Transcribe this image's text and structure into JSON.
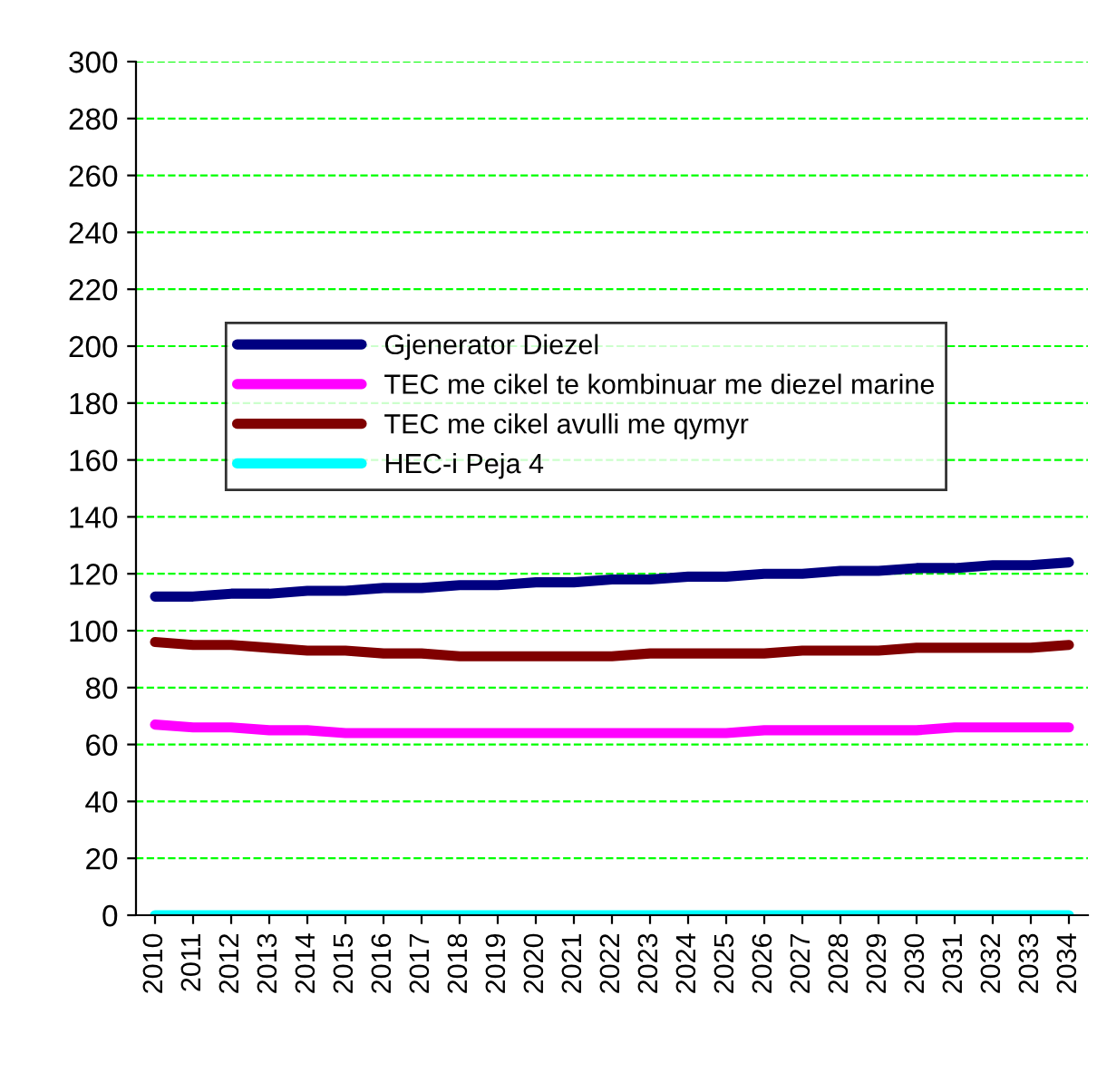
{
  "chart_data": {
    "type": "line",
    "categories": [
      "2010",
      "2011",
      "2012",
      "2013",
      "2014",
      "2015",
      "2016",
      "2017",
      "2018",
      "2019",
      "2020",
      "2021",
      "2022",
      "2023",
      "2024",
      "2025",
      "2026",
      "2027",
      "2028",
      "2029",
      "2030",
      "2031",
      "2032",
      "2033",
      "2034"
    ],
    "series": [
      {
        "name": "Gjenerator Diezel",
        "color": "#000080",
        "values": [
          112,
          112,
          113,
          113,
          114,
          114,
          115,
          115,
          116,
          116,
          117,
          117,
          118,
          118,
          119,
          119,
          120,
          120,
          121,
          121,
          122,
          122,
          123,
          123,
          124
        ]
      },
      {
        "name": "TEC me cikel te kombinuar me diezel marine",
        "color": "#ff00ff",
        "values": [
          67,
          66,
          66,
          65,
          65,
          64,
          64,
          64,
          64,
          64,
          64,
          64,
          64,
          64,
          64,
          64,
          65,
          65,
          65,
          65,
          65,
          66,
          66,
          66,
          66
        ]
      },
      {
        "name": "TEC me cikel avulli me qymyr",
        "color": "#800000",
        "values": [
          96,
          95,
          95,
          94,
          93,
          93,
          92,
          92,
          91,
          91,
          91,
          91,
          91,
          92,
          92,
          92,
          92,
          93,
          93,
          93,
          94,
          94,
          94,
          94,
          95
        ]
      },
      {
        "name": "HEC-i Peja 4",
        "color": "#00ffff",
        "values": [
          0,
          0,
          0,
          0,
          0,
          0,
          0,
          0,
          0,
          0,
          0,
          0,
          0,
          0,
          0,
          0,
          0,
          0,
          0,
          0,
          0,
          0,
          0,
          0,
          0
        ]
      }
    ],
    "ylim": [
      0,
      300
    ],
    "yticks": [
      0,
      20,
      40,
      60,
      80,
      100,
      120,
      140,
      160,
      180,
      200,
      220,
      240,
      260,
      280,
      300
    ],
    "grid": "y",
    "legend": "center left",
    "marker": "none",
    "line_style": "solid"
  }
}
